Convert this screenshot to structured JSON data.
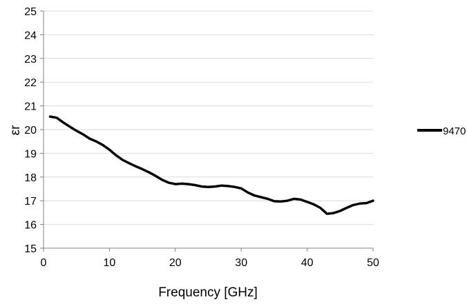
{
  "chart_data": {
    "type": "line",
    "title": "",
    "xlabel": "Frequency [GHz]",
    "ylabel": "εr",
    "xlim": [
      0,
      50
    ],
    "ylim": [
      15,
      25
    ],
    "x_ticks": [
      "0",
      "10",
      "20",
      "30",
      "40",
      "50"
    ],
    "y_ticks": [
      "15",
      "16",
      "17",
      "18",
      "19",
      "20",
      "21",
      "22",
      "23",
      "24",
      "25"
    ],
    "grid": "horizontal",
    "legend_position": "right",
    "series": [
      {
        "name": "9470",
        "color": "#000000",
        "x": [
          1,
          2,
          3,
          4,
          5,
          6,
          7,
          8,
          9,
          10,
          11,
          12,
          13,
          14,
          15,
          16,
          17,
          18,
          19,
          20,
          21,
          22,
          23,
          24,
          25,
          26,
          27,
          28,
          29,
          30,
          31,
          32,
          33,
          34,
          35,
          36,
          37,
          38,
          39,
          40,
          41,
          42,
          43,
          44,
          45,
          46,
          47,
          48,
          49,
          50
        ],
        "y": [
          20.55,
          20.5,
          20.3,
          20.12,
          19.95,
          19.8,
          19.62,
          19.5,
          19.35,
          19.15,
          18.92,
          18.72,
          18.58,
          18.45,
          18.33,
          18.2,
          18.05,
          17.88,
          17.76,
          17.7,
          17.72,
          17.7,
          17.66,
          17.6,
          17.58,
          17.6,
          17.64,
          17.62,
          17.58,
          17.52,
          17.35,
          17.22,
          17.15,
          17.08,
          16.98,
          16.97,
          17.0,
          17.08,
          17.05,
          16.95,
          16.85,
          16.7,
          16.45,
          16.48,
          16.57,
          16.7,
          16.82,
          16.88,
          16.9,
          17.0
        ]
      }
    ]
  }
}
